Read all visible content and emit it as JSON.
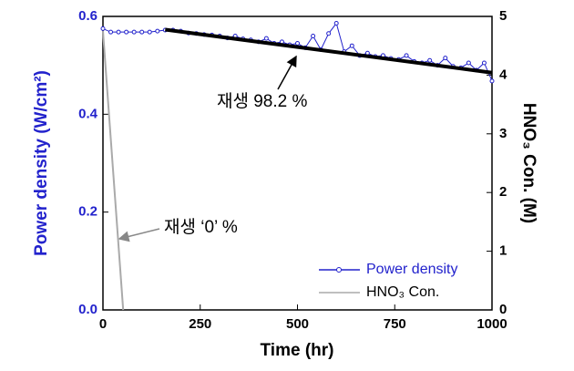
{
  "chart_data": {
    "type": "line",
    "x_label": "Time (hr)",
    "y_label": "Power density (W/cm²)",
    "y2_label": "HNO₃ Con. (M)",
    "xlim": [
      0,
      1000
    ],
    "xticks": [
      0,
      250,
      500,
      750,
      1000
    ],
    "ylim": [
      0,
      0.6
    ],
    "yticks": [
      {
        "value": 0,
        "label": "0.0"
      },
      0.2,
      0.4,
      0.6
    ],
    "y2lim": [
      0,
      5
    ],
    "y2ticks": [
      0,
      1,
      2,
      3,
      4,
      5
    ],
    "legend": "lower right",
    "series": [
      {
        "name": "Power density",
        "color": "#2222cc",
        "marker": "circle",
        "x": [
          0,
          20,
          40,
          60,
          80,
          100,
          120,
          140,
          160,
          180,
          200,
          220,
          240,
          260,
          280,
          300,
          320,
          340,
          360,
          380,
          400,
          420,
          440,
          460,
          480,
          500,
          520,
          540,
          560,
          580,
          600,
          620,
          640,
          660,
          680,
          700,
          720,
          740,
          760,
          780,
          800,
          820,
          840,
          860,
          880,
          900,
          920,
          940,
          960,
          980,
          1000
        ],
        "values": [
          0.575,
          0.568,
          0.568,
          0.568,
          0.568,
          0.568,
          0.568,
          0.57,
          0.572,
          0.572,
          0.57,
          0.566,
          0.565,
          0.563,
          0.562,
          0.56,
          0.556,
          0.56,
          0.554,
          0.552,
          0.548,
          0.555,
          0.545,
          0.548,
          0.542,
          0.545,
          0.536,
          0.56,
          0.532,
          0.565,
          0.586,
          0.528,
          0.54,
          0.52,
          0.525,
          0.518,
          0.52,
          0.514,
          0.512,
          0.52,
          0.508,
          0.505,
          0.51,
          0.5,
          0.515,
          0.498,
          0.495,
          0.505,
          0.49,
          0.505,
          0.468
        ]
      },
      {
        "name": "HNO₃ Con.",
        "color": "#aaaaaa",
        "axis": "y2",
        "x": [
          0,
          52
        ],
        "values": [
          4.75,
          0
        ]
      }
    ],
    "trend": {
      "color": "#000000",
      "x": [
        160,
        1000
      ],
      "values": [
        0.573,
        0.485
      ]
    },
    "annotations": [
      "재생 98.2 %",
      "재생 ‘0’ %"
    ]
  }
}
